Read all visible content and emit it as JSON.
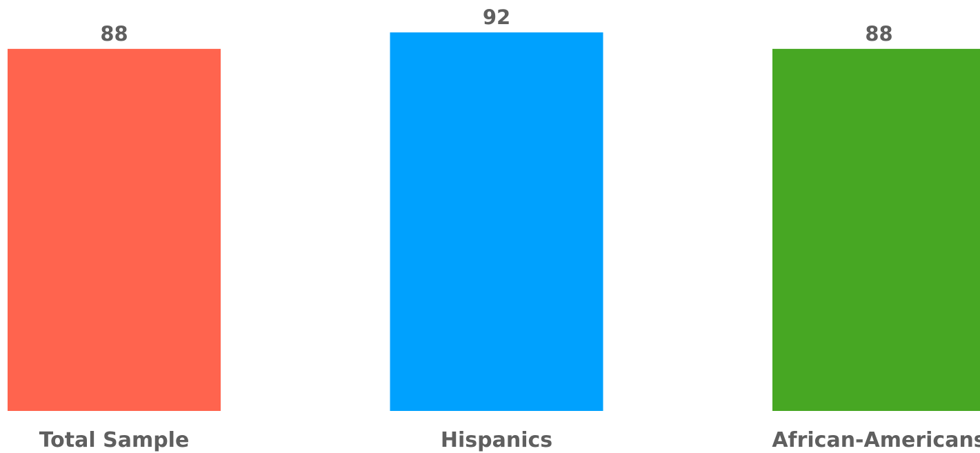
{
  "chart_data": {
    "type": "bar",
    "categories": [
      "Total Sample",
      "Hispanics",
      "African-Americans"
    ],
    "values": [
      88,
      92,
      88
    ],
    "data_labels": [
      "88",
      "92",
      "88"
    ],
    "colors": [
      "#ff644e",
      "#00a1fe",
      "#47a723"
    ],
    "ylim": [
      0,
      92
    ],
    "grid": false,
    "legend": "none"
  }
}
